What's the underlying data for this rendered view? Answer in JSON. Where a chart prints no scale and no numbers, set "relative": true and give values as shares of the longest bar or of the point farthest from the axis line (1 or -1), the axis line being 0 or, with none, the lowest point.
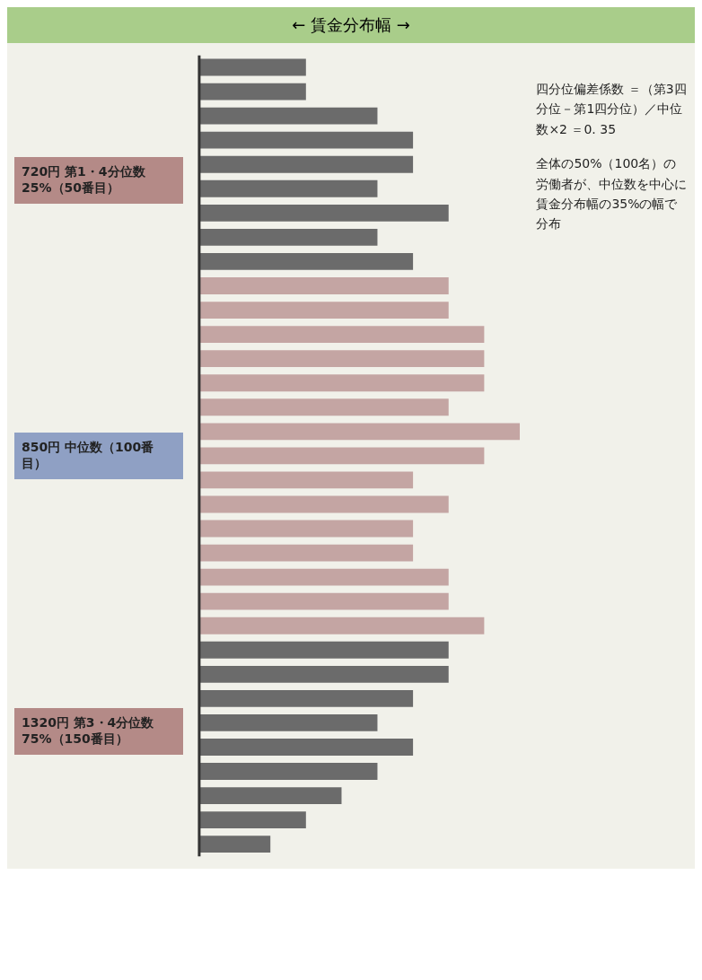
{
  "chart_data": {
    "type": "bar",
    "orientation": "horizontal",
    "relative": true,
    "title": "← 賃金分布幅 →",
    "categories": [
      null,
      null,
      null,
      null,
      null,
      null,
      null,
      null,
      null,
      null,
      null,
      null,
      null,
      null,
      null,
      null,
      null,
      null,
      null,
      null,
      null,
      null,
      null,
      null,
      null,
      null,
      null,
      null,
      null,
      null,
      null,
      null,
      null
    ],
    "values": [
      0.333,
      0.333,
      0.556,
      0.667,
      0.667,
      0.556,
      0.778,
      0.556,
      0.667,
      0.778,
      0.778,
      0.889,
      0.889,
      0.889,
      0.778,
      1,
      0.889,
      0.667,
      0.778,
      0.667,
      0.667,
      0.778,
      0.778,
      0.889,
      0.778,
      0.778,
      0.667,
      0.556,
      0.667,
      0.556,
      0.444,
      0.333,
      0.222
    ],
    "colors": [
      "#6b6b6b",
      "#6b6b6b",
      "#6b6b6b",
      "#6b6b6b",
      "#6b6b6b",
      "#6b6b6b",
      "#6b6b6b",
      "#6b6b6b",
      "#6b6b6b",
      "#c4a5a3",
      "#c4a5a3",
      "#c4a5a3",
      "#c4a5a3",
      "#c4a5a3",
      "#c4a5a3",
      "#c4a5a3",
      "#c4a5a3",
      "#c4a5a3",
      "#c4a5a3",
      "#c4a5a3",
      "#c4a5a3",
      "#c4a5a3",
      "#c4a5a3",
      "#c4a5a3",
      "#6b6b6b",
      "#6b6b6b",
      "#6b6b6b",
      "#6b6b6b",
      "#6b6b6b",
      "#6b6b6b",
      "#6b6b6b",
      "#6b6b6b",
      "#6b6b6b"
    ],
    "annotations": [
      "720円 第1・4分位数 25%（50番目）",
      "850円 中位数（100番目）",
      "1320円 第3・4分位数 75%（150番目）",
      "四分位偏差係数 ＝（第3四分位－第1四分位）／中位数×2 ＝0. 35",
      "全体の50%（100名）の労働者が、中位数を中心に賃金分布幅の35%の幅で分布"
    ],
    "grid": false,
    "legend": false
  }
}
